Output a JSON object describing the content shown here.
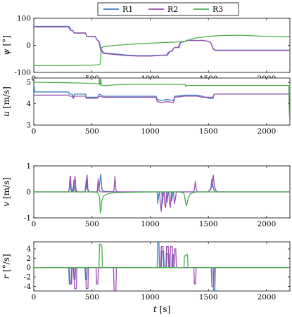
{
  "chart_data": [
    {
      "type": "line",
      "ylabel_sym": "ψ",
      "ylabel_unit": "[°]",
      "xlim": [
        0,
        2200
      ],
      "ylim": [
        -100,
        100
      ],
      "xticks": [
        "0",
        "500",
        "1000",
        "1500",
        "2000"
      ],
      "yticks": [
        "-100",
        "0",
        "100"
      ],
      "ytick_values": [
        -100,
        0,
        100
      ],
      "series": [
        {
          "name": "R1",
          "x": [
            0,
            300,
            310,
            320,
            335,
            345,
            355,
            445,
            455,
            530,
            540,
            560,
            580,
            600,
            700,
            800,
            900,
            1000,
            1100,
            1150,
            1160,
            1170,
            1190,
            1200,
            1210,
            1250,
            1260,
            1300,
            1310,
            1400,
            1450,
            1500,
            1520,
            1540,
            1550,
            1560,
            2200
          ],
          "y": [
            70,
            70,
            66,
            55,
            55,
            45,
            45,
            45,
            33,
            33,
            22,
            15,
            -15,
            -28,
            -32,
            -36,
            -38,
            -38,
            -36,
            -36,
            -28,
            -22,
            -22,
            -12,
            -8,
            -8,
            10,
            14,
            18,
            18,
            18,
            15,
            10,
            -10,
            -16,
            -18,
            -18
          ]
        },
        {
          "name": "R2",
          "x": [
            0,
            300,
            305,
            320,
            335,
            345,
            355,
            445,
            455,
            530,
            540,
            560,
            575,
            600,
            700,
            800,
            900,
            1000,
            1100,
            1140,
            1150,
            1170,
            1185,
            1200,
            1210,
            1240,
            1260,
            1300,
            1310,
            1400,
            1450,
            1500,
            1520,
            1540,
            1550,
            1560,
            2200
          ],
          "y": [
            68,
            68,
            62,
            55,
            55,
            46,
            46,
            46,
            32,
            32,
            22,
            12,
            -20,
            -30,
            -34,
            -38,
            -40,
            -40,
            -37,
            -37,
            -28,
            -22,
            -22,
            -12,
            -8,
            -8,
            12,
            14,
            18,
            18,
            18,
            15,
            10,
            -12,
            -17,
            -19,
            -19
          ]
        },
        {
          "name": "R3",
          "x": [
            0,
            200,
            400,
            500,
            550,
            570,
            575,
            580,
            600,
            700,
            800,
            900,
            1000,
            1100,
            1200,
            1300,
            1320,
            1330,
            1400,
            1500,
            1600,
            1700,
            1800,
            1900,
            2000,
            2100,
            2200
          ],
          "y": [
            -75,
            -75,
            -74,
            -73,
            -72,
            -70,
            -45,
            -10,
            -5,
            0,
            3,
            6,
            8,
            10,
            12,
            14,
            18,
            20,
            28,
            33,
            36,
            37,
            37,
            35,
            33,
            32,
            32
          ]
        }
      ]
    },
    {
      "type": "line",
      "ylabel_sym": "u",
      "ylabel_unit": "[m/s]",
      "xlim": [
        0,
        2200
      ],
      "ylim": [
        3,
        5.2
      ],
      "xticks": [
        "0",
        "500",
        "1000",
        "1500",
        "2000"
      ],
      "yticks": [
        "3",
        "4",
        "5"
      ],
      "ytick_values": [
        3,
        4,
        5
      ],
      "series": [
        {
          "name": "R1",
          "x": [
            0,
            2,
            8,
            300,
            305,
            330,
            340,
            350,
            445,
            450,
            550,
            560,
            600,
            700,
            1050,
            1060,
            1100,
            1140,
            1200,
            1210,
            1300,
            1350,
            1400,
            1450,
            1500,
            1540,
            1550,
            2200
          ],
          "y": [
            4.3,
            4.85,
            4.55,
            4.55,
            4.45,
            4.45,
            4.3,
            4.45,
            4.45,
            4.3,
            4.3,
            4.45,
            4.35,
            4.35,
            4.35,
            4.2,
            4.15,
            4.2,
            4.15,
            4.35,
            4.4,
            4.4,
            4.4,
            4.35,
            4.25,
            4.25,
            4.45,
            4.45
          ]
        },
        {
          "name": "R2",
          "x": [
            0,
            4,
            300,
            305,
            330,
            340,
            350,
            445,
            450,
            550,
            560,
            600,
            700,
            1050,
            1060,
            1100,
            1140,
            1200,
            1210,
            1300,
            1350,
            1400,
            1450,
            1500,
            1540,
            1550,
            2200
          ],
          "y": [
            4.4,
            4.4,
            4.4,
            4.35,
            4.35,
            4.25,
            4.35,
            4.35,
            4.25,
            4.25,
            4.35,
            4.3,
            4.3,
            4.3,
            4.1,
            4.05,
            4.1,
            4.05,
            4.3,
            4.35,
            4.35,
            4.35,
            4.3,
            4.3,
            4.3,
            4.45,
            4.45
          ]
        },
        {
          "name": "R3",
          "x": [
            0,
            100,
            300,
            500,
            560,
            565,
            570,
            575,
            580,
            590,
            600,
            620,
            700,
            800,
            900,
            1000,
            1100,
            1200,
            1300,
            1305,
            1310,
            1320,
            1400,
            1500,
            1600,
            1700,
            1800,
            1900,
            2000,
            2100,
            2190,
            2195,
            2200
          ],
          "y": [
            5.0,
            5.0,
            4.98,
            4.95,
            4.92,
            5.15,
            4.85,
            5.15,
            4.9,
            4.85,
            4.85,
            4.85,
            4.88,
            4.9,
            4.9,
            4.9,
            4.9,
            4.9,
            4.9,
            4.8,
            4.85,
            4.85,
            4.85,
            4.85,
            4.85,
            4.85,
            4.85,
            4.85,
            4.85,
            4.85,
            4.85,
            3.6,
            3.1
          ]
        }
      ]
    },
    {
      "type": "line",
      "ylabel_sym": "v",
      "ylabel_unit": "[m/s]",
      "xlim": [
        0,
        2200
      ],
      "ylim": [
        -1,
        1
      ],
      "xticks": [
        "0",
        "500",
        "1000",
        "1500",
        "2000"
      ],
      "yticks": [
        "-1",
        "0",
        "1"
      ],
      "ytick_values": [
        -1,
        0,
        1
      ],
      "series": [
        {
          "name": "R1",
          "x": [
            0,
            300,
            305,
            312,
            318,
            325,
            330,
            340,
            345,
            352,
            360,
            370,
            380,
            440,
            445,
            452,
            460,
            470,
            480,
            540,
            560,
            575,
            585,
            600,
            700,
            1000,
            1060,
            1065,
            1072,
            1080,
            1090,
            1100,
            1105,
            1112,
            1120,
            1130,
            1140,
            1145,
            1152,
            1160,
            1170,
            1180,
            1185,
            1192,
            1200,
            1210,
            1300,
            1500,
            1520,
            1530,
            1540,
            1550,
            1560,
            2200
          ],
          "y": [
            0,
            0,
            0.15,
            0.6,
            0.1,
            0.02,
            0.02,
            0.2,
            0.45,
            0.1,
            0.02,
            0,
            0,
            0,
            0.2,
            0.5,
            0.1,
            0.02,
            0,
            0,
            0.1,
            0.68,
            0.1,
            0.02,
            0,
            0,
            0,
            -0.45,
            -0.15,
            0,
            0,
            0,
            -0.45,
            -0.1,
            0,
            0,
            0,
            -0.4,
            -0.1,
            0,
            0,
            0,
            -0.35,
            -0.1,
            0,
            0,
            0,
            0,
            0.1,
            0.5,
            0.2,
            0.05,
            0,
            0
          ]
        },
        {
          "name": "R2",
          "x": [
            0,
            300,
            308,
            315,
            322,
            330,
            340,
            345,
            355,
            362,
            370,
            380,
            440,
            450,
            458,
            465,
            475,
            480,
            545,
            553,
            560,
            570,
            680,
            690,
            697,
            705,
            715,
            1000,
            1080,
            1088,
            1095,
            1103,
            1110,
            1120,
            1125,
            1133,
            1140,
            1150,
            1160,
            1165,
            1173,
            1180,
            1190,
            1200,
            1208,
            1215,
            1225,
            1300,
            1370,
            1380,
            1387,
            1395,
            1405,
            1500,
            1530,
            1542,
            1552,
            1565,
            1580,
            2200
          ],
          "y": [
            0,
            0,
            0.2,
            0.6,
            0.1,
            0.02,
            0,
            0.2,
            0.6,
            0.1,
            0.02,
            0,
            0,
            0.2,
            0.65,
            0.1,
            0.02,
            0,
            0,
            0.5,
            0.1,
            0,
            0,
            0.1,
            0.6,
            0.1,
            0,
            0,
            0,
            -0.5,
            -0.75,
            -0.2,
            0,
            0,
            -0.5,
            -0.6,
            -0.1,
            0,
            0,
            -0.4,
            -0.6,
            -0.1,
            0,
            0,
            -0.45,
            -0.3,
            0,
            0,
            0,
            0.1,
            0.4,
            0.1,
            0,
            0,
            0.2,
            0.65,
            0.2,
            0.05,
            0,
            0
          ]
        },
        {
          "name": "R3",
          "x": [
            0,
            500,
            550,
            565,
            572,
            578,
            585,
            595,
            610,
            650,
            700,
            1000,
            1250,
            1290,
            1300,
            1310,
            1320,
            1330,
            1345,
            1370,
            1400,
            1600,
            2000,
            2200
          ],
          "y": [
            0,
            0,
            -0.02,
            -0.2,
            -0.82,
            -0.65,
            -0.35,
            -0.2,
            -0.12,
            -0.06,
            -0.03,
            0,
            0,
            -0.05,
            -0.3,
            -0.55,
            -0.4,
            -0.2,
            -0.08,
            -0.03,
            0,
            0,
            0,
            0
          ]
        }
      ]
    },
    {
      "type": "line",
      "ylabel_sym": "r",
      "ylabel_unit": "[°/s]",
      "xlabel_sym": "t",
      "xlabel_unit": "[s]",
      "xlim": [
        0,
        2200
      ],
      "ylim": [
        -5,
        5.5
      ],
      "xticks": [
        "0",
        "500",
        "1000",
        "1500",
        "2000"
      ],
      "yticks": [
        "-4",
        "-2",
        "0",
        "2",
        "4"
      ],
      "ytick_values": [
        -4,
        -2,
        0,
        2,
        4
      ],
      "series": [
        {
          "name": "R1",
          "x": [
            0,
            300,
            305,
            320,
            325,
            340,
            345,
            355,
            360,
            440,
            445,
            455,
            460,
            1060,
            1065,
            1075,
            1080,
            1095,
            1100,
            1115,
            1120,
            1140,
            1145,
            1160,
            1165,
            1185,
            1190,
            1200,
            1205,
            1540,
            1545,
            1555,
            1560,
            2200
          ],
          "y": [
            0,
            0,
            -3.5,
            -3.5,
            0,
            0,
            -2.5,
            -2.5,
            0,
            0,
            -2.5,
            -2.5,
            0,
            0,
            5.5,
            5.5,
            0,
            0,
            3.5,
            3.5,
            0,
            0,
            3,
            3,
            0,
            0,
            2.8,
            2.8,
            0,
            0,
            -5,
            -5,
            0,
            0
          ]
        },
        {
          "name": "R2",
          "x": [
            0,
            305,
            310,
            325,
            330,
            345,
            350,
            365,
            370,
            445,
            450,
            465,
            470,
            535,
            540,
            550,
            555,
            685,
            690,
            705,
            710,
            1090,
            1095,
            1110,
            1115,
            1135,
            1140,
            1155,
            1160,
            1170,
            1175,
            1190,
            1195,
            1205,
            1210,
            1220,
            1225,
            1375,
            1380,
            1390,
            1395,
            1525,
            1530,
            1545,
            1550,
            2200
          ],
          "y": [
            0,
            0,
            -3.5,
            -3.5,
            0,
            0,
            -4.5,
            -4.5,
            0,
            0,
            -4.5,
            -4.5,
            0,
            0,
            -3.5,
            -3.5,
            0,
            0,
            -5,
            -5,
            0,
            0,
            4.5,
            4.5,
            0,
            0,
            4.5,
            4.5,
            0,
            0,
            4.5,
            4.5,
            0,
            0,
            4,
            4,
            0,
            0,
            -3.5,
            -3.5,
            0,
            0,
            -4,
            -4,
            0,
            0
          ]
        },
        {
          "name": "R3",
          "x": [
            0,
            560,
            565,
            575,
            580,
            585,
            590,
            1290,
            1295,
            1305,
            1310,
            1320,
            1325,
            2200
          ],
          "y": [
            0,
            0,
            5,
            5,
            4.6,
            4.6,
            0,
            0,
            2.5,
            2.5,
            2.8,
            2.8,
            0,
            0
          ]
        }
      ]
    }
  ],
  "legend": {
    "placement": "top-center",
    "items": [
      {
        "label": "R1",
        "color": "#3b7fc0"
      },
      {
        "label": "R2",
        "color": "#9b4fb0"
      },
      {
        "label": "R3",
        "color": "#4cb04c"
      }
    ]
  }
}
